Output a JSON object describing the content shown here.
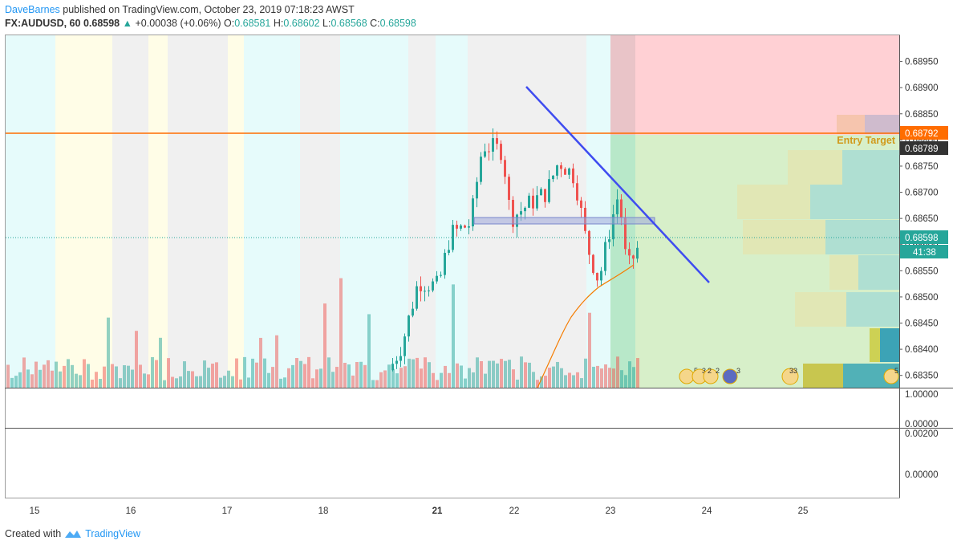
{
  "header": {
    "author": "DaveBarnes",
    "published": "published on TradingView.com, October 23, 2019 07:18:23 AWST",
    "symbol": "FX:AUDUSD, 60",
    "last": "0.68598",
    "change_arrow": "▲",
    "change": "+0.00038 (+0.06%)",
    "o_label": "O:",
    "o_value": "0.68581",
    "h_label": "H:",
    "h_value": "0.68602",
    "l_label": "L:",
    "l_value": "0.68568",
    "c_label": "C:",
    "c_value": "0.68598"
  },
  "footer": {
    "created": "Created with",
    "brand": "TradingView"
  },
  "colors": {
    "up": "#26a69a",
    "down": "#ef5350",
    "accent": "#2196f3",
    "level": "#ff6d00",
    "trend": "#3f4cf0"
  },
  "chart_data": {
    "type": "candlestick",
    "symbol": "FX:AUDUSD",
    "interval": "60",
    "y_ticks": [
      "0.68950",
      "0.68900",
      "0.68850",
      "0.68800",
      "0.68750",
      "0.68700",
      "0.68650",
      "0.68600",
      "0.68550",
      "0.68500",
      "0.68450",
      "0.68400",
      "0.68350"
    ],
    "y_range": [
      0.68325,
      0.69
    ],
    "x_ticks": [
      "15",
      "16",
      "17",
      "18",
      "21",
      "22",
      "23",
      "24",
      "25"
    ],
    "price_labels": {
      "level": "0.68792",
      "target": "0.68789",
      "last": "0.68598",
      "countdown": "41:38"
    },
    "annotation": "Entry Target",
    "horizontal_level": 0.68792,
    "trendline": {
      "from": {
        "day": "22",
        "price": 0.68875
      },
      "to": {
        "day": "24",
        "price": 0.68515
      }
    },
    "lower_pane1_ticks": [
      "1.00000",
      "0.00000"
    ],
    "lower_pane2_ticks": [
      "0.00200",
      "0.00000"
    ],
    "event_badges": [
      "5",
      "3",
      "2",
      "2",
      "3",
      "33",
      "5"
    ],
    "candles": [
      {
        "o": 0.68602,
        "h": 0.68612,
        "l": 0.68585,
        "c": 0.68596
      },
      {
        "o": 0.68596,
        "h": 0.6861,
        "l": 0.68594,
        "c": 0.68606
      },
      {
        "o": 0.68606,
        "h": 0.68611,
        "l": 0.68596,
        "c": 0.68598
      },
      {
        "o": 0.68598,
        "h": 0.68607,
        "l": 0.6859,
        "c": 0.686
      }
    ]
  }
}
